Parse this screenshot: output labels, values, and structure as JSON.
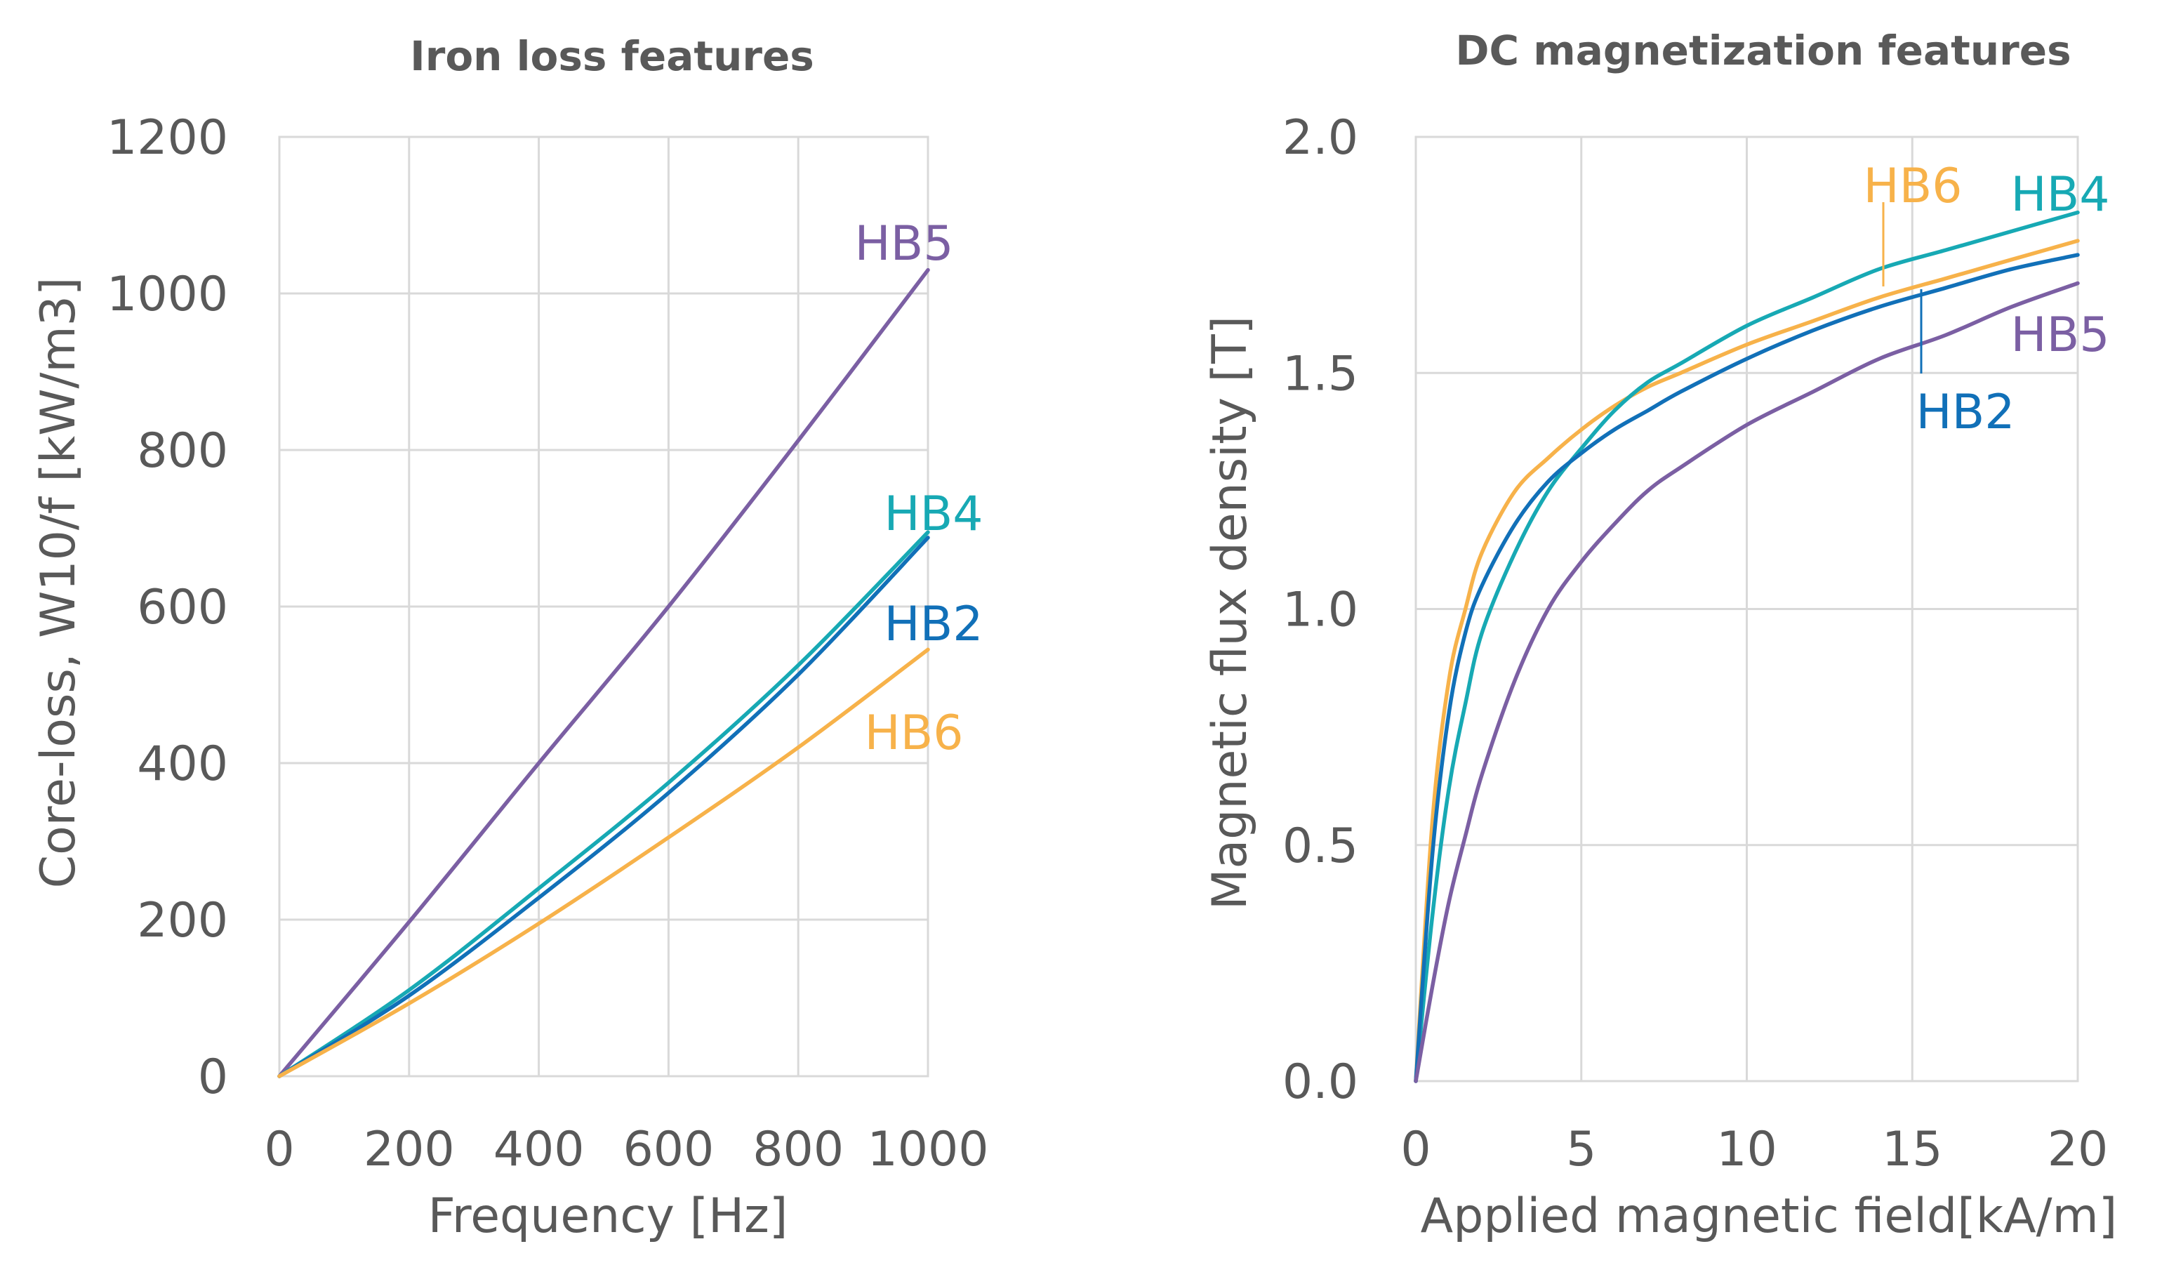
{
  "colors": {
    "HB2": "#1170b8",
    "HB4": "#17a9b4",
    "HB5": "#7b5fa3",
    "HB6": "#f7b24a",
    "text": "#595959",
    "grid": "#d9d9d9"
  },
  "chart_data": [
    {
      "type": "line",
      "title": "Iron loss features",
      "xlabel": "Frequency [Hz]",
      "ylabel": "Core-loss, W10/f [kW/m3]",
      "xlim": [
        0,
        1000
      ],
      "ylim": [
        0,
        1200
      ],
      "x_ticks": [
        "0",
        "200",
        "400",
        "600",
        "800",
        "1000"
      ],
      "y_ticks": [
        "0",
        "200",
        "400",
        "600",
        "800",
        "1000",
        "1200"
      ],
      "grid": true,
      "series": [
        {
          "name": "HB5",
          "x": [
            0,
            200,
            400,
            600,
            800,
            1000
          ],
          "y": [
            0,
            197,
            400,
            600,
            812,
            1030
          ]
        },
        {
          "name": "HB4",
          "x": [
            0,
            200,
            400,
            600,
            800,
            1000
          ],
          "y": [
            0,
            110,
            240,
            375,
            525,
            695
          ]
        },
        {
          "name": "HB2",
          "x": [
            0,
            200,
            400,
            600,
            800,
            1000
          ],
          "y": [
            0,
            103,
            228,
            362,
            513,
            688
          ]
        },
        {
          "name": "HB6",
          "x": [
            0,
            200,
            400,
            600,
            800,
            1000
          ],
          "y": [
            0,
            93,
            195,
            305,
            420,
            545
          ]
        }
      ]
    },
    {
      "type": "line",
      "title": "DC magnetization features",
      "xlabel": "Applied magnetic field[kA/m]",
      "ylabel": "Magnetic flux density [T]",
      "xlim": [
        0,
        20
      ],
      "ylim": [
        0,
        2
      ],
      "x_ticks": [
        "0",
        "5",
        "10",
        "15",
        "20"
      ],
      "y_ticks": [
        "0.0",
        "0.5",
        "1.0",
        "1.5",
        "2.0"
      ],
      "grid": true,
      "series": [
        {
          "name": "HB6",
          "x": [
            0,
            0.5,
            1,
            1.5,
            2,
            3,
            4,
            5,
            6,
            7,
            8,
            10,
            12,
            14,
            16,
            18,
            20
          ],
          "y": [
            0,
            0.55,
            0.85,
            1.0,
            1.12,
            1.25,
            1.32,
            1.38,
            1.43,
            1.47,
            1.5,
            1.56,
            1.61,
            1.66,
            1.7,
            1.74,
            1.78
          ]
        },
        {
          "name": "HB4",
          "x": [
            0,
            0.5,
            1,
            1.5,
            2,
            3,
            4,
            5,
            6,
            7,
            8,
            10,
            12,
            14,
            16,
            18,
            20
          ],
          "y": [
            0,
            0.35,
            0.62,
            0.8,
            0.95,
            1.12,
            1.25,
            1.34,
            1.42,
            1.48,
            1.52,
            1.6,
            1.66,
            1.72,
            1.76,
            1.8,
            1.84
          ]
        },
        {
          "name": "HB2",
          "x": [
            0,
            0.5,
            1,
            1.5,
            2,
            3,
            4,
            5,
            6,
            7,
            8,
            10,
            12,
            14,
            16,
            18,
            20
          ],
          "y": [
            0,
            0.48,
            0.78,
            0.95,
            1.05,
            1.18,
            1.27,
            1.33,
            1.38,
            1.42,
            1.46,
            1.53,
            1.59,
            1.64,
            1.68,
            1.72,
            1.75
          ]
        },
        {
          "name": "HB5",
          "x": [
            0,
            0.5,
            1,
            1.5,
            2,
            3,
            4,
            5,
            6,
            7,
            8,
            10,
            12,
            14,
            16,
            18,
            20
          ],
          "y": [
            0,
            0.2,
            0.38,
            0.52,
            0.65,
            0.85,
            1.0,
            1.1,
            1.18,
            1.25,
            1.3,
            1.39,
            1.46,
            1.53,
            1.58,
            1.64,
            1.69
          ]
        }
      ]
    }
  ]
}
